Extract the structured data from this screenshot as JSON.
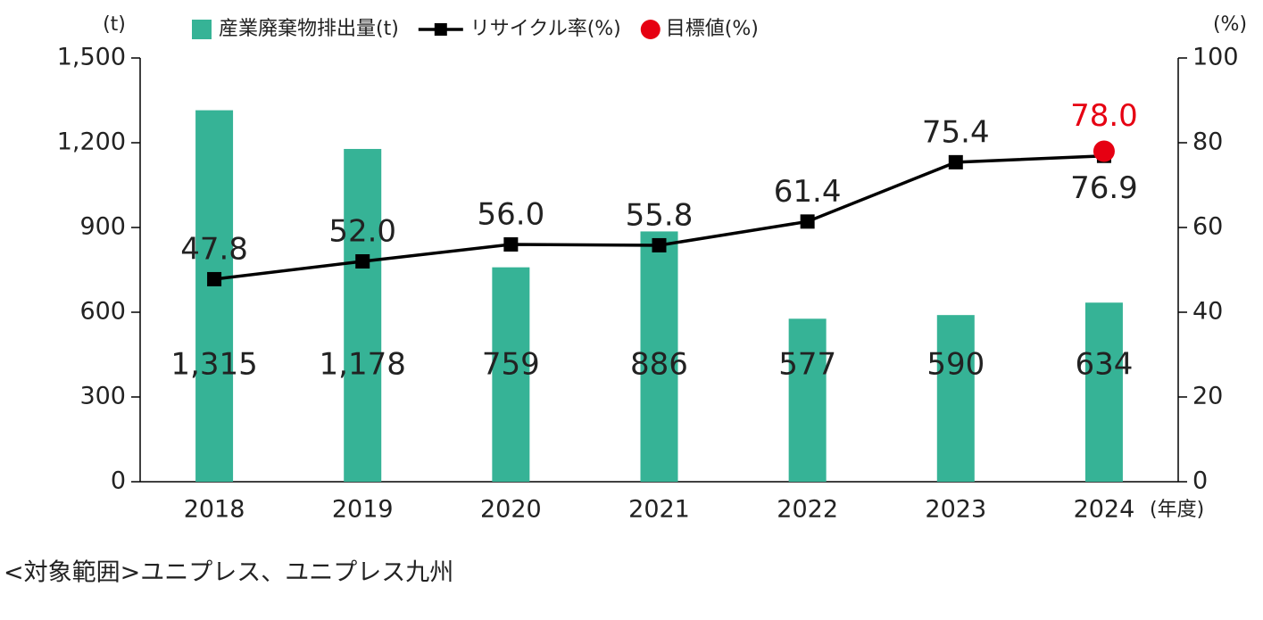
{
  "chart_data": {
    "type": "bar",
    "categories": [
      "2018",
      "2019",
      "2020",
      "2021",
      "2022",
      "2023",
      "2024"
    ],
    "xlabel": "(年度)",
    "ylabel": "(t)",
    "y2label": "(%)",
    "series": [
      {
        "name": "産業廃棄物排出量(t)",
        "type": "bar",
        "color": "#36b396",
        "values": [
          1315,
          1178,
          759,
          886,
          577,
          590,
          634
        ],
        "value_labels": [
          "1,315",
          "1,178",
          "759",
          "886",
          "577",
          "590",
          "634"
        ]
      },
      {
        "name": "リサイクル率(%)",
        "type": "line",
        "axis": "y2",
        "color": "#000000",
        "values": [
          47.8,
          52.0,
          56.0,
          55.8,
          61.4,
          75.4,
          76.9
        ],
        "value_labels": [
          "47.8",
          "52.0",
          "56.0",
          "55.8",
          "61.4",
          "75.4",
          "76.9"
        ]
      },
      {
        "name": "目標値(%)",
        "type": "scatter",
        "axis": "y2",
        "color": "#e60012",
        "values": [
          null,
          null,
          null,
          null,
          null,
          null,
          78.0
        ],
        "value_labels": [
          null,
          null,
          null,
          null,
          null,
          null,
          "78.0"
        ]
      }
    ],
    "ylim": [
      0,
      1500
    ],
    "yticks": [
      0,
      300,
      600,
      900,
      {
        "value": 1200,
        "label": "1,200"
      },
      {
        "value": 1500,
        "label": "1,500"
      }
    ],
    "y2lim": [
      0,
      100
    ],
    "y2ticks": [
      0,
      20,
      40,
      60,
      80,
      100
    ]
  },
  "note": "<対象範囲>ユニプレス、ユニプレス九州"
}
